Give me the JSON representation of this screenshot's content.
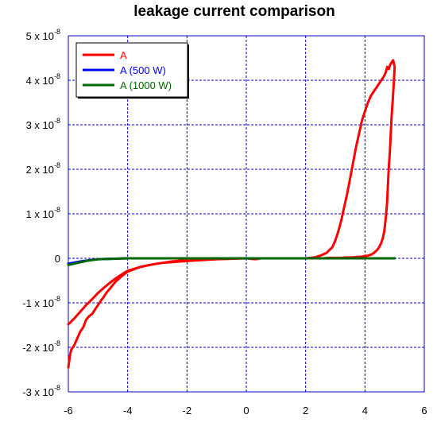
{
  "chart_data": {
    "type": "line",
    "title": "leakage current comparison",
    "xlabel": "",
    "ylabel": "",
    "xlim": [
      -6,
      6
    ],
    "ylim": [
      -3e-08,
      5e-08
    ],
    "grid": true,
    "legend_placement": "top-left",
    "x_ticks": [
      {
        "value": -6,
        "label": "-6"
      },
      {
        "value": -4,
        "label": "-4"
      },
      {
        "value": -2,
        "label": "-2"
      },
      {
        "value": 0,
        "label": "0"
      },
      {
        "value": 2,
        "label": "2"
      },
      {
        "value": 4,
        "label": "4"
      },
      {
        "value": 6,
        "label": "6"
      }
    ],
    "y_ticks": [
      {
        "value": 5e-08,
        "mantissa": "5 x 10",
        "exp": "-8"
      },
      {
        "value": 4e-08,
        "mantissa": "4 x 10",
        "exp": "-8"
      },
      {
        "value": 3e-08,
        "mantissa": "3 x 10",
        "exp": "-8"
      },
      {
        "value": 2e-08,
        "mantissa": "2 x 10",
        "exp": "-8"
      },
      {
        "value": 1e-08,
        "mantissa": "1 x 10",
        "exp": "-8"
      },
      {
        "value": 0,
        "mantissa": "0",
        "exp": ""
      },
      {
        "value": -1e-08,
        "mantissa": "-1 x 10",
        "exp": "-8"
      },
      {
        "value": -2e-08,
        "mantissa": "-2 x 10",
        "exp": "-8"
      },
      {
        "value": -3e-08,
        "mantissa": "-3 x 10",
        "exp": "-8"
      }
    ],
    "series": [
      {
        "name": "A",
        "color": "#ff0000",
        "x": [
          -6.0,
          -5.95,
          -5.9,
          -5.8,
          -5.7,
          -5.6,
          -5.5,
          -5.4,
          -5.3,
          -5.2,
          -5.1,
          -5.0,
          -4.9,
          -4.8,
          -4.7,
          -4.6,
          -4.5,
          -4.4,
          -4.3,
          -4.2,
          -4.1,
          -4.0,
          -3.8,
          -3.6,
          -3.4,
          -3.2,
          -3.0,
          -2.8,
          -2.6,
          -2.4,
          -2.2,
          -2.0,
          -1.5,
          -1.0,
          -0.5,
          0.0,
          0.3,
          0.5,
          1.0,
          1.5,
          2.0,
          2.3,
          2.5,
          2.7,
          2.9,
          3.0,
          3.1,
          3.2,
          3.3,
          3.4,
          3.5,
          3.6,
          3.7,
          3.8,
          3.9,
          4.0,
          4.1,
          4.2,
          4.3,
          4.4,
          4.5,
          4.55,
          4.6,
          4.65,
          4.7,
          4.75,
          4.8,
          4.85,
          4.9,
          4.95,
          5.0,
          4.97,
          4.93,
          4.9,
          4.87,
          4.84,
          4.8,
          4.77,
          4.74,
          4.7,
          4.65,
          4.6,
          4.55,
          4.5,
          4.45,
          4.4,
          4.3,
          4.2,
          4.1,
          4.0,
          3.9,
          3.8,
          3.7,
          3.6,
          3.5,
          3.4,
          3.2,
          3.0,
          2.8,
          2.6,
          2.4,
          2.2,
          2.0,
          1.5,
          1.0,
          0.5,
          0.0,
          -0.5,
          -1.0,
          -1.5,
          -2.0,
          -2.5,
          -3.0,
          -3.5,
          -4.0,
          -4.2,
          -4.4,
          -4.6,
          -4.8,
          -5.0,
          -5.2,
          -5.4,
          -5.6,
          -5.8,
          -5.95,
          -6.0
        ],
        "y": [
          -2.45e-08,
          -2.2e-08,
          -2.05e-08,
          -1.95e-08,
          -1.8e-08,
          -1.65e-08,
          -1.55e-08,
          -1.38e-08,
          -1.3e-08,
          -1.25e-08,
          -1.15e-08,
          -1.05e-08,
          -9.5e-09,
          -8.6e-09,
          -7.6e-09,
          -6.8e-09,
          -6e-09,
          -5.2e-09,
          -4.6e-09,
          -4e-09,
          -3.5e-09,
          -3e-09,
          -2.5e-09,
          -2e-09,
          -1.7e-09,
          -1.4e-09,
          -1.2e-09,
          -1e-09,
          -9e-10,
          -8e-10,
          -7e-10,
          -6e-10,
          -4e-10,
          -2e-10,
          -1e-10,
          0.0,
          -2e-10,
          0.0,
          0.0,
          0.0,
          0.0,
          2e-10,
          6e-10,
          1.2e-09,
          2.5e-09,
          4e-09,
          6e-09,
          8.5e-09,
          1.15e-08,
          1.45e-08,
          1.8e-08,
          2.15e-08,
          2.5e-08,
          2.8e-08,
          3.1e-08,
          3.3e-08,
          3.5e-08,
          3.65e-08,
          3.75e-08,
          3.85e-08,
          3.95e-08,
          4e-08,
          4.05e-08,
          4.1e-08,
          4.18e-08,
          4.3e-08,
          4.25e-08,
          4.35e-08,
          4.4e-08,
          4.45e-08,
          4.3e-08,
          3.9e-08,
          3.5e-08,
          3.2e-08,
          2.8e-08,
          2.4e-08,
          2e-08,
          1.6e-08,
          1.2e-08,
          9e-09,
          6e-09,
          4.5e-09,
          3.5e-09,
          2.8e-09,
          2.2e-09,
          1.8e-09,
          1.2e-09,
          8e-10,
          6e-10,
          5e-10,
          4e-10,
          3e-10,
          3e-10,
          2e-10,
          2e-10,
          2e-10,
          1e-10,
          1e-10,
          1e-10,
          0.0,
          0.0,
          0.0,
          0.0,
          0.0,
          0.0,
          0.0,
          0.0,
          -1e-10,
          -2e-10,
          -3e-10,
          -4e-10,
          -7e-10,
          -1.2e-09,
          -1.8e-09,
          -2.8e-09,
          -3.6e-09,
          -4.5e-09,
          -5.5e-09,
          -6.6e-09,
          -7.8e-09,
          -9.2e-09,
          -1.05e-08,
          -1.2e-08,
          -1.35e-08,
          -1.45e-08,
          -1.48e-08
        ]
      },
      {
        "name": "A (500 W)",
        "color": "#0000ff",
        "x": [
          -6.0,
          -5.5,
          -5.0,
          -4.0,
          -2.0,
          0.0,
          2.0,
          4.0,
          5.0
        ],
        "y": [
          -1.2e-09,
          -6e-10,
          -2e-10,
          0.0,
          0.0,
          0.0,
          0.0,
          0.0,
          0.0
        ]
      },
      {
        "name": "A (1000 W)",
        "color": "#006600",
        "x": [
          -6.0,
          -5.8,
          -5.6,
          -5.4,
          -5.2,
          -5.0,
          -4.5,
          -4.0,
          -2.0,
          0.0,
          2.0,
          4.0,
          5.0
        ],
        "y": [
          -1.5e-09,
          -1.2e-09,
          -9e-10,
          -6e-10,
          -4e-10,
          -2e-10,
          -1e-10,
          0.0,
          0.0,
          0.0,
          0.0,
          0.0,
          0.0
        ]
      }
    ]
  }
}
